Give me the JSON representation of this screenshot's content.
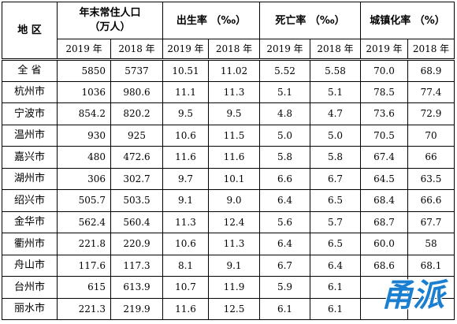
{
  "header": {
    "region": "地 区",
    "population": "年末常住人口\n（万人）",
    "birth_rate": "出生率 （‰）",
    "death_rate": "死亡率 （‰）",
    "urbanization": "城镇化率 （%）",
    "years": [
      "2019 年",
      "2018 年",
      "2019 年",
      "2018 年",
      "2019 年",
      "2018 年",
      "2019 年",
      "2018 年"
    ]
  },
  "rows": [
    {
      "region": "全 省",
      "vals": [
        "5850",
        "5737",
        "10.51",
        "11.02",
        "5.52",
        "5.58",
        "70.0",
        "68.9"
      ]
    },
    {
      "region": "杭州市",
      "vals": [
        "1036",
        "980.6",
        "11.1",
        "11.3",
        "5.1",
        "5.1",
        "78.5",
        "77.4"
      ]
    },
    {
      "region": "宁波市",
      "vals": [
        "854.2",
        "820.2",
        "9.5",
        "9.5",
        "4.8",
        "4.7",
        "73.6",
        "72.9"
      ]
    },
    {
      "region": "温州市",
      "vals": [
        "930",
        "925",
        "10.6",
        "11.5",
        "5.0",
        "5.0",
        "70.5",
        "70"
      ]
    },
    {
      "region": "嘉兴市",
      "vals": [
        "480",
        "472.6",
        "11.6",
        "11.6",
        "5.8",
        "5.8",
        "67.4",
        "66"
      ]
    },
    {
      "region": "湖州市",
      "vals": [
        "306",
        "302.7",
        "9.7",
        "10.1",
        "6.6",
        "6.7",
        "64.5",
        "63.5"
      ]
    },
    {
      "region": "绍兴市",
      "vals": [
        "505.7",
        "503.5",
        "9.1",
        "9.0",
        "6.4",
        "6.5",
        "68.4",
        "66.6"
      ]
    },
    {
      "region": "金华市",
      "vals": [
        "562.4",
        "560.4",
        "11.3",
        "12.4",
        "5.6",
        "5.7",
        "68.7",
        "67.7"
      ]
    },
    {
      "region": "衢州市",
      "vals": [
        "221.8",
        "220.9",
        "10.6",
        "11.3",
        "6.4",
        "6.5",
        "60.0",
        "58"
      ]
    },
    {
      "region": "舟山市",
      "vals": [
        "117.6",
        "117.3",
        "8.1",
        "9.1",
        "6.7",
        "6.4",
        "68.6",
        "68.1"
      ]
    },
    {
      "region": "台州市",
      "vals": [
        "615",
        "613.9",
        "10.7",
        "11.9",
        "5.9",
        "6.1",
        "",
        ""
      ]
    },
    {
      "region": "丽水市",
      "vals": [
        "221.3",
        "219.9",
        "11.6",
        "12.5",
        "6.1",
        "6.1",
        "",
        ""
      ]
    }
  ],
  "watermark": {
    "text": "甬派",
    "color": "#1a7fd0"
  }
}
